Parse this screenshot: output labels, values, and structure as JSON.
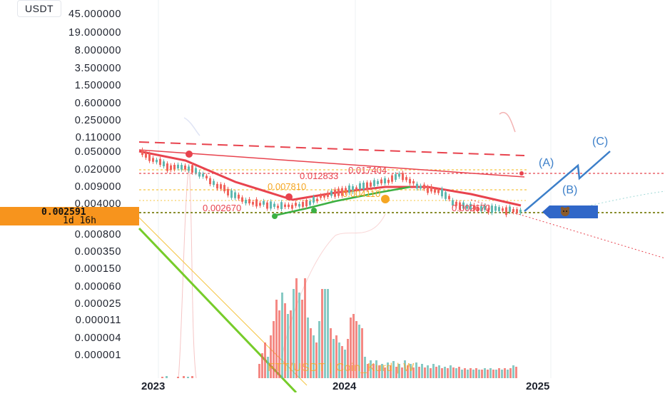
{
  "chart_data": {
    "type": "candlestick",
    "symbol_label": "USDT",
    "watermark": "FTT/USDT | Coin_Kurd | W",
    "scale": "log",
    "price_axis_labels": [
      "45.000000",
      "19.000000",
      "8.000000",
      "3.500000",
      "1.500000",
      "0.600000",
      "0.250000",
      "0.110000",
      "0.050000",
      "0.020000",
      "0.009000",
      "0.004000",
      "0.002591",
      "0.000800",
      "0.000350",
      "0.000150",
      "0.000060",
      "0.000025",
      "0.000011",
      "0.000004",
      "0.000001"
    ],
    "time_axis_labels": [
      "2023",
      "2024",
      "2025"
    ],
    "current_price": "0.002591",
    "countdown": "1d 16h",
    "level_labels": [
      "0.017404",
      "0.012833",
      "0.007810",
      "0.004110",
      "0.002670"
    ],
    "wave_labels": [
      "(A)",
      "(B)",
      "(C)"
    ],
    "colors": {
      "up": "#5fb8b0",
      "down": "#f0625b",
      "trend_red": "#e8434e",
      "trend_green": "#3cb043",
      "wave_blue": "#3c7fc9",
      "fib_orange": "#f5a623",
      "price_box": "#f7941d"
    }
  }
}
